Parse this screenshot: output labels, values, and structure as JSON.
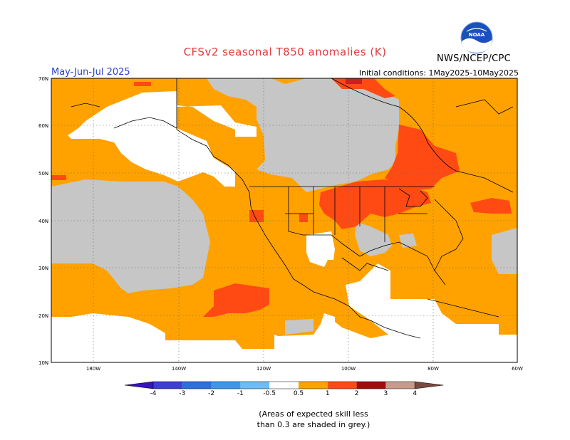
{
  "header": {
    "title": "CFSv2 seasonal T850 anomalies (K)",
    "season": "May-Jun-Jul 2025",
    "initial_conditions": "Initial conditions: 1May2025-10May2025",
    "agency": "NWS/NCEP/CPC",
    "logo_text": "NOAA"
  },
  "map": {
    "lat_labels": [
      "70N",
      "60N",
      "50N",
      "40N",
      "30N",
      "20N",
      "10N"
    ],
    "lon_labels": [
      "180W",
      "140W",
      "120W",
      "100W",
      "80W",
      "60W"
    ],
    "grid": true,
    "colors": {
      "grey": "#c6c6c6",
      "orange": "#ffa200",
      "red_orange": "#ff4a14",
      "white": "#ffffff",
      "dark_red": "#cc1f1f"
    }
  },
  "legend": {
    "ticks": [
      "-4",
      "-3",
      "-2",
      "-1",
      "-0.5",
      "0.5",
      "1",
      "2",
      "3",
      "4"
    ],
    "colors": [
      "#3516b8",
      "#3c3cd6",
      "#2b6fe0",
      "#3c97ec",
      "#6dbcf6",
      "#ffffff",
      "#ffa200",
      "#ff4a14",
      "#a40a0a",
      "#c89a8c",
      "#7a4a40"
    ]
  },
  "note": {
    "line1": "(Areas of expected skill less",
    "line2": "than 0.3 are shaded in grey.)"
  }
}
